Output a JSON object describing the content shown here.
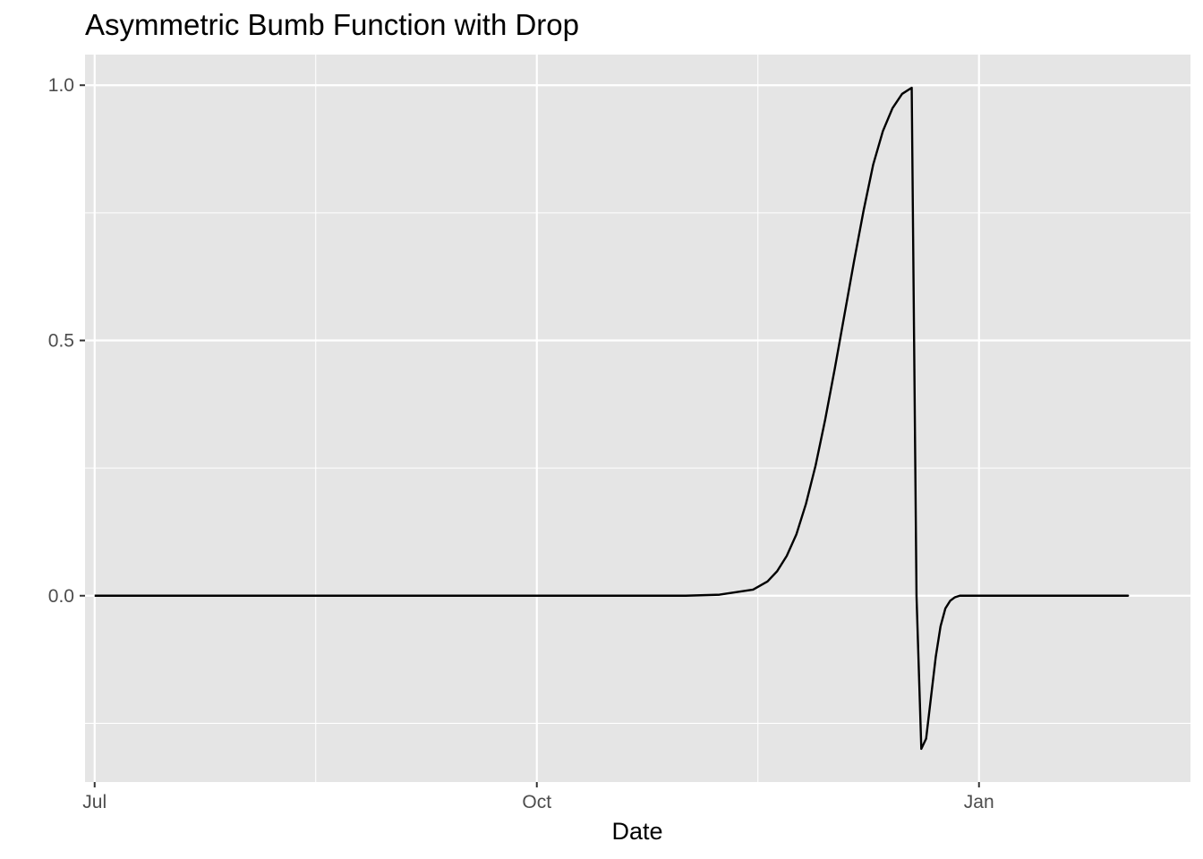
{
  "chart_data": {
    "type": "line",
    "title": "Asymmetric Bumb Function with Drop",
    "xlabel": "Date",
    "ylabel": "",
    "x_axis_type": "date",
    "xlim": [
      "2019-06-29",
      "2020-02-14"
    ],
    "ylim": [
      -0.365,
      1.06
    ],
    "x_ticks": [
      {
        "date": "2019-07-01",
        "label": "Jul"
      },
      {
        "date": "2019-10-01",
        "label": "Oct"
      },
      {
        "date": "2020-01-01",
        "label": "Jan"
      }
    ],
    "x_minor_ticks": [
      "2019-08-16",
      "2019-11-16",
      "2020-02-16"
    ],
    "y_ticks": [
      {
        "value": 0.0,
        "label": "0.0"
      },
      {
        "value": 0.5,
        "label": "0.5"
      },
      {
        "value": 1.0,
        "label": "1.0"
      }
    ],
    "y_minor_ticks": [
      -0.25,
      0.25,
      0.75
    ],
    "grid": true,
    "legend": "none",
    "colors": {
      "panel_background": "#e5e5e5",
      "grid_line": "#ffffff",
      "line": "#000000"
    },
    "series": [
      {
        "x": [
          "2019-07-01",
          "2019-08-01",
          "2019-09-01",
          "2019-10-01",
          "2019-10-15",
          "2019-11-01",
          "2019-11-08",
          "2019-11-15",
          "2019-11-18",
          "2019-11-20",
          "2019-11-22",
          "2019-11-24",
          "2019-11-26",
          "2019-11-28",
          "2019-11-30",
          "2019-12-02",
          "2019-12-04",
          "2019-12-06",
          "2019-12-08",
          "2019-12-10",
          "2019-12-12",
          "2019-12-14",
          "2019-12-16",
          "2019-12-18",
          "2019-12-19",
          "2019-12-20",
          "2019-12-21",
          "2019-12-22",
          "2019-12-23",
          "2019-12-24",
          "2019-12-25",
          "2019-12-26",
          "2019-12-27",
          "2019-12-28",
          "2019-12-29",
          "2019-12-30",
          "2019-12-31",
          "2020-01-02",
          "2020-01-05",
          "2020-01-15",
          "2020-02-01",
          "2020-01-31"
        ],
        "y": [
          0.0,
          0.0,
          0.0,
          0.0,
          0.0,
          0.0,
          0.002,
          0.012,
          0.028,
          0.048,
          0.078,
          0.12,
          0.18,
          0.255,
          0.345,
          0.445,
          0.55,
          0.655,
          0.755,
          0.845,
          0.91,
          0.955,
          0.983,
          0.995,
          0.0,
          -0.3,
          -0.28,
          -0.2,
          -0.12,
          -0.06,
          -0.025,
          -0.01,
          -0.003,
          0.0,
          0.0,
          0.0,
          0.0,
          0.0,
          0.0,
          0.0,
          0.0,
          0.0
        ]
      }
    ]
  }
}
